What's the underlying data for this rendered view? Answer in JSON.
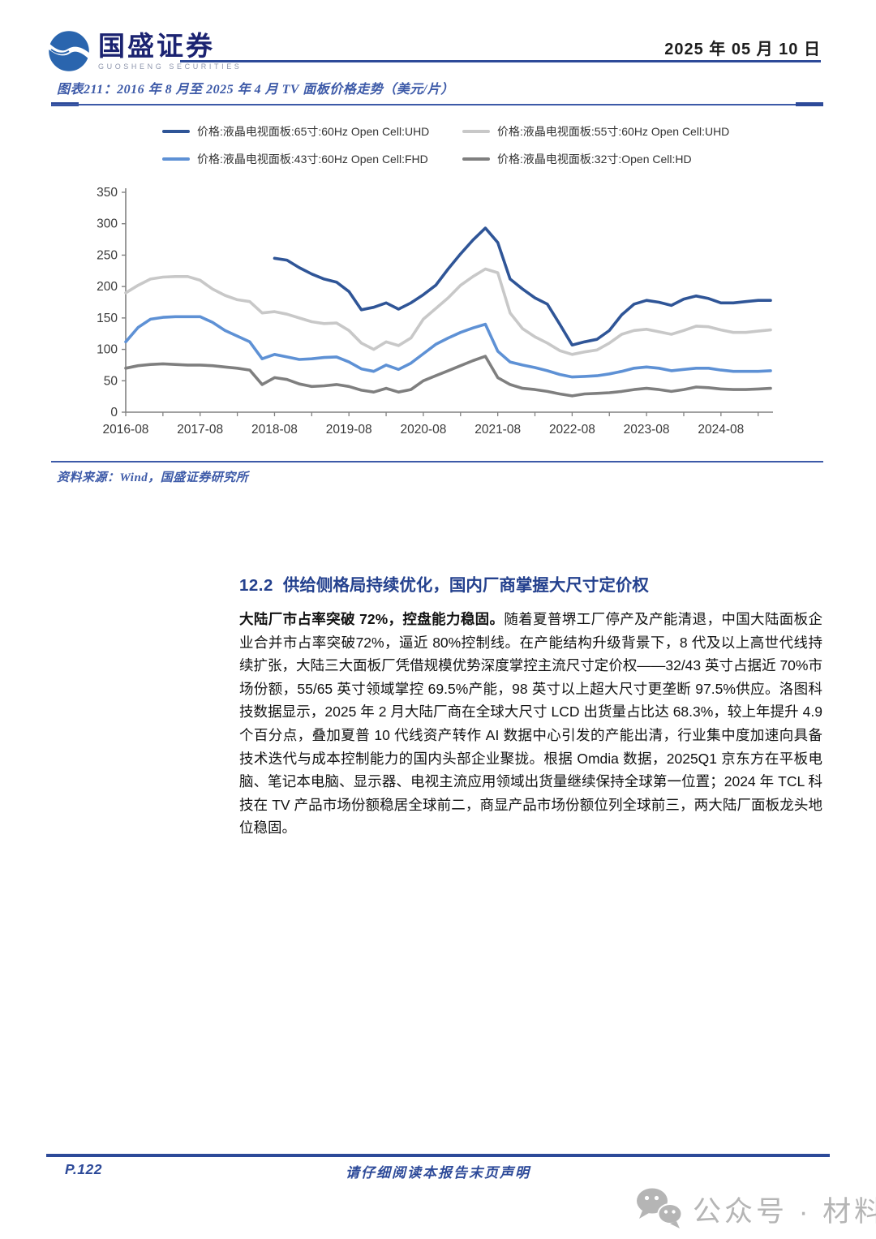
{
  "header": {
    "brand_cn": "国盛证券",
    "brand_en": "GUOSHENG SECURITIES",
    "date": "2025 年 05 月 10 日"
  },
  "figure": {
    "title": "图表211：2016 年 8 月至 2025 年 4 月 TV 面板价格走势（美元/片）",
    "source": "资料来源：Wind，国盛证券研究所"
  },
  "chart_data": {
    "type": "line",
    "title": "2016年8月至2025年4月TV面板价格走势（美元/片）",
    "xlabel": "",
    "ylabel": "",
    "ylim": [
      0,
      350
    ],
    "y_ticks": [
      0,
      50,
      100,
      150,
      200,
      250,
      300,
      350
    ],
    "grid": false,
    "legend_position": "top",
    "x_tick_labels": [
      "2016-08",
      "2017-08",
      "2018-08",
      "2019-08",
      "2020-08",
      "2021-08",
      "2022-08",
      "2023-08",
      "2024-08"
    ],
    "x": [
      "2016-08",
      "2016-10",
      "2016-12",
      "2017-02",
      "2017-04",
      "2017-06",
      "2017-08",
      "2017-10",
      "2017-12",
      "2018-02",
      "2018-04",
      "2018-06",
      "2018-08",
      "2018-10",
      "2018-12",
      "2019-02",
      "2019-04",
      "2019-06",
      "2019-08",
      "2019-10",
      "2019-12",
      "2020-02",
      "2020-04",
      "2020-06",
      "2020-08",
      "2020-10",
      "2020-12",
      "2021-02",
      "2021-04",
      "2021-06",
      "2021-08",
      "2021-10",
      "2021-12",
      "2022-02",
      "2022-04",
      "2022-06",
      "2022-08",
      "2022-10",
      "2022-12",
      "2023-02",
      "2023-04",
      "2023-06",
      "2023-08",
      "2023-10",
      "2023-12",
      "2024-02",
      "2024-04",
      "2024-06",
      "2024-08",
      "2024-10",
      "2024-12",
      "2025-02",
      "2025-04"
    ],
    "series": [
      {
        "name": "价格:液晶电视面板:65寸:60Hz Open Cell:UHD",
        "color": "#2F5597",
        "values": [
          null,
          null,
          null,
          null,
          null,
          null,
          null,
          null,
          null,
          null,
          null,
          null,
          245,
          242,
          230,
          220,
          212,
          207,
          192,
          163,
          167,
          174,
          164,
          174,
          187,
          202,
          228,
          252,
          274,
          293,
          270,
          212,
          196,
          182,
          172,
          140,
          107,
          112,
          116,
          130,
          155,
          172,
          178,
          175,
          170,
          180,
          185,
          181,
          174,
          174,
          176,
          178,
          178
        ]
      },
      {
        "name": "价格:液晶电视面板:55寸:60Hz Open Cell:UHD",
        "color": "#C8C8C8",
        "values": [
          190,
          202,
          212,
          215,
          216,
          216,
          210,
          196,
          186,
          179,
          176,
          158,
          160,
          156,
          150,
          144,
          141,
          142,
          130,
          110,
          100,
          112,
          106,
          118,
          148,
          165,
          182,
          202,
          216,
          228,
          222,
          158,
          133,
          120,
          110,
          98,
          92,
          96,
          99,
          110,
          124,
          130,
          132,
          128,
          124,
          130,
          137,
          136,
          131,
          127,
          127,
          129,
          131
        ]
      },
      {
        "name": "价格:液晶电视面板:43寸:60Hz Open Cell:FHD",
        "color": "#5E91D5",
        "values": [
          112,
          135,
          148,
          151,
          152,
          152,
          152,
          143,
          130,
          121,
          112,
          85,
          92,
          88,
          84,
          85,
          87,
          88,
          80,
          69,
          65,
          75,
          68,
          78,
          93,
          108,
          118,
          127,
          134,
          140,
          97,
          80,
          75,
          71,
          66,
          60,
          56,
          57,
          58,
          61,
          65,
          70,
          72,
          70,
          66,
          68,
          70,
          70,
          67,
          65,
          65,
          65,
          66
        ]
      },
      {
        "name": "价格:液晶电视面板:32寸:Open Cell:HD",
        "color": "#7F7F7F",
        "values": [
          70,
          74,
          76,
          77,
          76,
          75,
          75,
          74,
          72,
          70,
          67,
          44,
          55,
          52,
          45,
          41,
          42,
          44,
          41,
          35,
          32,
          38,
          32,
          36,
          50,
          58,
          66,
          74,
          82,
          89,
          55,
          44,
          38,
          36,
          33,
          29,
          26,
          29,
          30,
          31,
          33,
          36,
          38,
          36,
          33,
          36,
          40,
          39,
          37,
          36,
          36,
          37,
          38
        ]
      }
    ]
  },
  "section": {
    "heading_number": "12.2",
    "heading_text": "供给侧格局持续优化，国内厂商掌握大尺寸定价权",
    "paragraph_bold": "大陆厂市占率突破 72%，控盘能力稳固。",
    "paragraph_rest": "随着夏普堺工厂停产及产能清退，中国大陆面板企业合并市占率突破72%，逼近 80%控制线。在产能结构升级背景下，8 代及以上高世代线持续扩张，大陆三大面板厂凭借规模优势深度掌控主流尺寸定价权——32/43 英寸占据近 70%市场份额，55/65 英寸领域掌控 69.5%产能，98 英寸以上超大尺寸更垄断 97.5%供应。洛图科技数据显示，2025 年 2 月大陆厂商在全球大尺寸 LCD 出货量占比达 68.3%，较上年提升 4.9 个百分点，叠加夏普 10 代线资产转作 AI 数据中心引发的产能出清，行业集中度加速向具备技术迭代与成本控制能力的国内头部企业聚拢。根据 Omdia 数据，2025Q1 京东方在平板电脑、笔记本电脑、显示器、电视主流应用领域出货量继续保持全球第一位置；2024 年 TCL 科技在 TV 产品市场份额稳居全球前二，商显产品市场份额位列全球前三，两大陆厂面板龙头地位稳固。"
  },
  "footer": {
    "page_label": "P.122",
    "disclaimer": "请仔细阅读本报告末页声明"
  },
  "watermark": {
    "icon": "wechat-icon",
    "text": "公众号 · 材料汇"
  },
  "colors": {
    "accent_blue": "#2D4A99",
    "title_blue": "#3D5AA8",
    "heading_blue": "#24418E",
    "brand_navy": "#1B2371",
    "logo_blue": "#2A65AE",
    "axis_gray": "#808080",
    "watermark_gray": "#B5B5B5"
  }
}
